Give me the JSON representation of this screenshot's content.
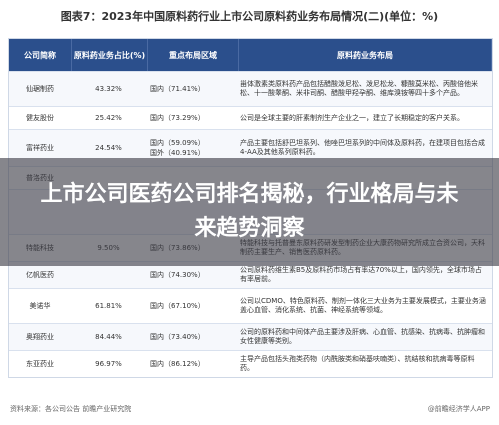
{
  "figure": {
    "title": "图表7：2023年中国原料药行业上市公司原料药业务布局情况(二)(单位：%)",
    "headers": [
      "公司简称",
      "原料药业务占比(%)",
      "重点布局区域",
      "原料药业务布局"
    ],
    "rows": [
      {
        "company": "仙琚制药",
        "share": "43.32%",
        "region": "国内（71.41%）",
        "desc": "甾体激素类原料药产品包括醋酸泼尼松、泼尼松龙、糠酸莫米松、丙酸倍他米松、十一酸睾酮、米非司酮、醋酸甲羟孕酮、维库溴铵等四十多个产品。"
      },
      {
        "company": "健友股份",
        "share": "25.42%",
        "region": "国内（73.29%）",
        "desc": "公司是全球主要的肝素制剂生产企业之一，建立了长期稳定的客户关系。"
      },
      {
        "company": "富祥药业",
        "share": "24.54%",
        "region": "国内（59.09%）\n国外（40.91%）",
        "desc": "产品主要包括舒巴坦系列、他唑巴坦系列的中间体及原料药，在建项目包括合成4-AA及其他系列原料药。"
      },
      {
        "company": "普洛药业",
        "share": "",
        "region": "",
        "desc": ""
      },
      {
        "company": "",
        "share": "",
        "region": "",
        "desc": ""
      },
      {
        "company": "特能科技",
        "share": "9.50%",
        "region": "国内（73.86%）",
        "desc": "特能科技与托普曼东原料药研发型制药企业大康药物研究所成立合资公司，天科制药主要生产、销售医药原料药。"
      },
      {
        "company": "亿帆医药",
        "share": "",
        "region": "国内（74.30%）",
        "desc": "公司原料药维生素B5及原料药市场占有率达70%以上，国内领先，全球市场占有率居前。"
      },
      {
        "company": "美诺华",
        "share": "61.81%",
        "region": "国内（67.10%）",
        "desc": "公司以CDMO、特色原料药、制剂一体化三大业务为主要发展模式，主要业务涵盖心血管、消化系统、抗菌、神经系统等领域。"
      },
      {
        "company": "奥翔药业",
        "share": "84.44%",
        "region": "国内（73.40%）",
        "desc": "公司的原料药和中间体产品主要涉及肝病、心血管、抗感染、抗病毒、抗肿瘤和女性健康等类别。"
      },
      {
        "company": "东亚药业",
        "share": "96.97%",
        "region": "国内（86.12%）",
        "desc": "主导产品包括头孢类药物（内酰胺类和硝基呋喃类）、抗结核和抗病毒等原料药。"
      }
    ],
    "source": "资料来源：各公司公告 前瞻产业研究院",
    "brand": "@前瞻经济学人APP"
  },
  "overlay": {
    "headline": "上市公司医药公司排名揭秘，行业格局与未来趋势洞察"
  }
}
